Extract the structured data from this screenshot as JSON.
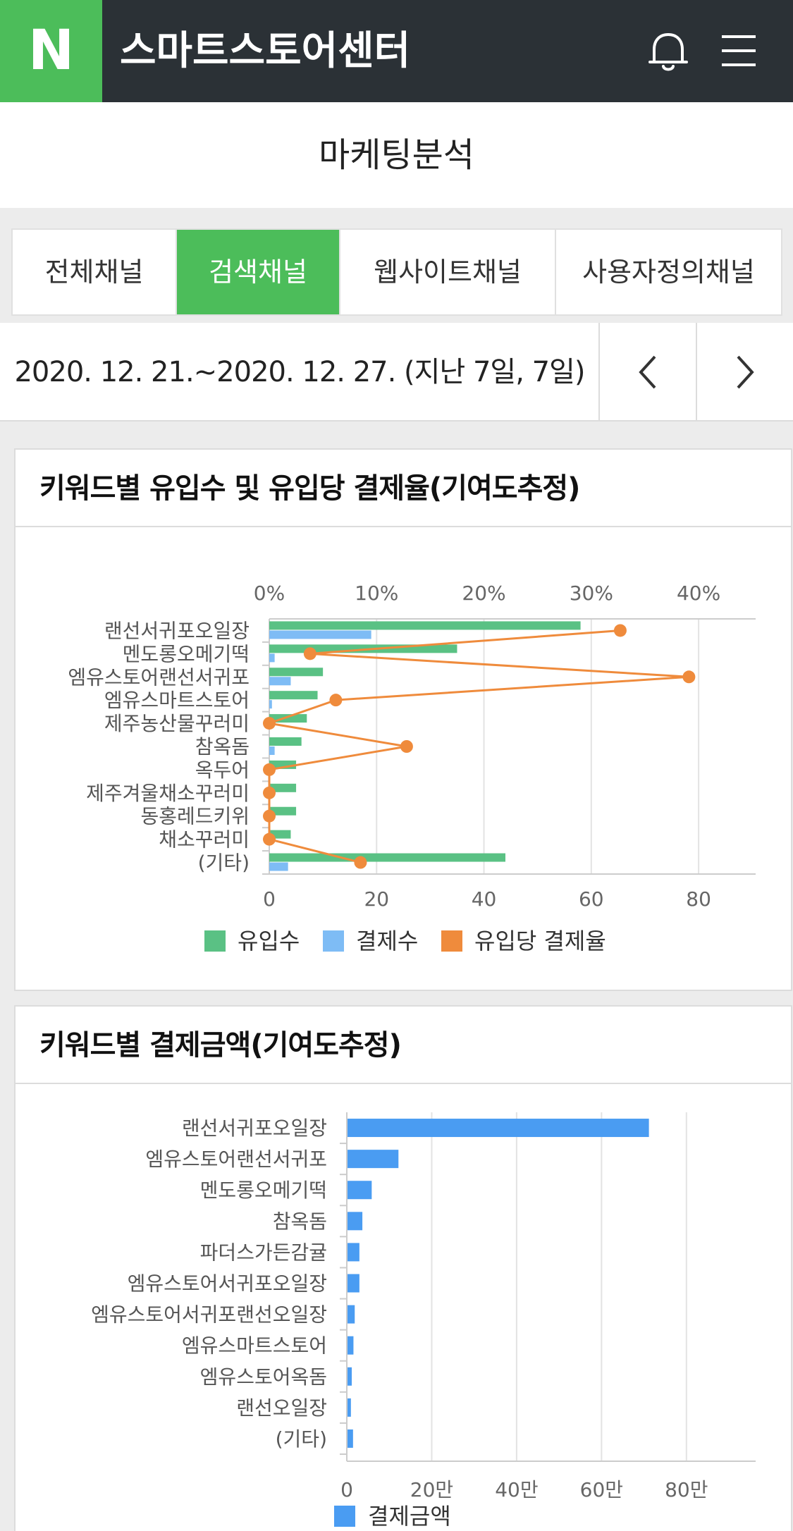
{
  "header": {
    "logo_letter": "N",
    "title": "스마트스토어센터",
    "bell_icon": "bell-icon",
    "menu_icon": "hamburger-menu-icon"
  },
  "page": {
    "title": "마케팅분석"
  },
  "tabs": [
    {
      "label": "전체채널",
      "active": false
    },
    {
      "label": "검색채널",
      "active": true
    },
    {
      "label": "웹사이트채널",
      "active": false
    },
    {
      "label": "사용자정의채널",
      "active": false
    }
  ],
  "date_bar": {
    "text": "2020. 12. 21.~2020. 12. 27. (지난 7일, 7일)",
    "prev_icon": "chevron-left-icon",
    "next_icon": "chevron-right-icon"
  },
  "card1": {
    "title": "키워드별 유입수 및 유입당 결제율(기여도추정)"
  },
  "card2": {
    "title": "키워드별 결제금액(기여도추정)"
  },
  "colors": {
    "green": "#5ac184",
    "light_blue": "#7ebcf5",
    "orange": "#ef8b3c",
    "blue": "#4a9cf2",
    "brand_green": "#4cbd5a",
    "header_dark": "#2b3136"
  },
  "chart_data": [
    {
      "type": "bar",
      "orientation": "horizontal",
      "categories": [
        "랜선서귀포오일장",
        "멘도롱오메기떡",
        "엠유스토어랜선서귀포",
        "엠유스마트스토어",
        "제주농산물꾸러미",
        "참옥돔",
        "옥두어",
        "제주겨울채소꾸러미",
        "동홍레드키위",
        "채소꾸러미",
        "(기타)"
      ],
      "series": [
        {
          "name": "유입수",
          "color": "#5ac184",
          "values": [
            58,
            35,
            10,
            9,
            7,
            6,
            5,
            5,
            5,
            4,
            44
          ]
        },
        {
          "name": "결제수",
          "color": "#7ebcf5",
          "values": [
            19,
            1,
            4,
            0.5,
            0,
            1,
            0,
            0,
            0,
            0,
            3.5
          ]
        },
        {
          "name": "유입당 결제율",
          "color": "#ef8b3c",
          "type": "line",
          "axis": "top",
          "values": [
            32.7,
            3.8,
            39.1,
            6.2,
            0,
            12.8,
            0,
            0,
            0,
            0,
            8.5
          ]
        }
      ],
      "x_ticks": [
        "0",
        "20",
        "40",
        "60",
        "80"
      ],
      "xlim": [
        0,
        88
      ],
      "top_ticks": [
        "0%",
        "10%",
        "20%",
        "30%",
        "40%"
      ],
      "top_lim": [
        0,
        44
      ],
      "legend": [
        "유입수",
        "결제수",
        "유입당 결제율"
      ],
      "legend_position": "bottom",
      "grid": true
    },
    {
      "type": "bar",
      "orientation": "horizontal",
      "categories": [
        "랜선서귀포오일장",
        "엠유스토어랜선서귀포",
        "멘도롱오메기떡",
        "참옥돔",
        "파더스가든감귤",
        "엠유스토어서귀포오일장",
        "엠유스토어서귀포랜선오일장",
        "엠유스마트스토어",
        "엠유스토어옥돔",
        "랜선오일장",
        "(기타)"
      ],
      "series": [
        {
          "name": "결제금액",
          "color": "#4a9cf2",
          "values": [
            710000,
            120000,
            57000,
            35000,
            28000,
            28000,
            17000,
            14000,
            10000,
            8000,
            13000
          ]
        }
      ],
      "x_ticks": [
        "0",
        "20만",
        "40만",
        "60만",
        "80만"
      ],
      "xlim": [
        0,
        880000
      ],
      "legend": [
        "결제금액"
      ],
      "legend_position": "bottom",
      "grid": true
    }
  ]
}
